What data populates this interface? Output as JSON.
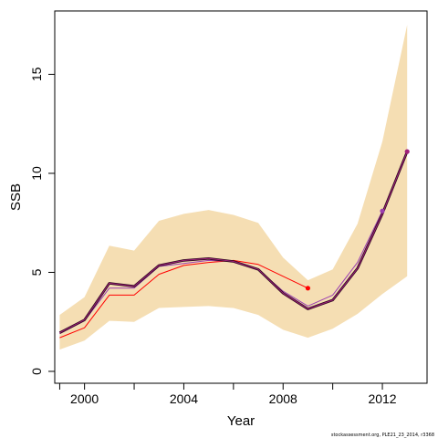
{
  "chart_data": {
    "type": "line",
    "xlabel": "Year",
    "ylabel": "SSB",
    "xlim": [
      1998.8,
      2013.8
    ],
    "ylim": [
      -0.6,
      18.2
    ],
    "x_ticks": [
      {
        "value": 1999,
        "label": ""
      },
      {
        "value": 2000,
        "label": "2000"
      },
      {
        "value": 2002,
        "label": ""
      },
      {
        "value": 2004,
        "label": "2004"
      },
      {
        "value": 2006,
        "label": ""
      },
      {
        "value": 2008,
        "label": "2008"
      },
      {
        "value": 2010,
        "label": ""
      },
      {
        "value": 2012,
        "label": "2012"
      }
    ],
    "y_ticks": [
      {
        "value": 0,
        "label": "0"
      },
      {
        "value": 5,
        "label": "5"
      },
      {
        "value": 10,
        "label": "10"
      },
      {
        "value": 15,
        "label": "15"
      }
    ],
    "grid": false,
    "band": {
      "color": "#f5deb3",
      "x": [
        1999,
        2000,
        2001,
        2002,
        2003,
        2004,
        2005,
        2006,
        2007,
        2008,
        2009,
        2010,
        2011,
        2012,
        2013
      ],
      "lower": [
        1.1,
        1.55,
        2.55,
        2.5,
        3.2,
        3.25,
        3.3,
        3.2,
        2.85,
        2.1,
        1.7,
        2.15,
        2.9,
        3.9,
        4.8
      ],
      "upper": [
        2.85,
        3.75,
        6.35,
        6.1,
        7.6,
        7.95,
        8.15,
        7.9,
        7.5,
        5.75,
        4.6,
        5.15,
        7.45,
        11.6,
        17.5
      ]
    },
    "series": [
      {
        "color": "#ff0000",
        "width": 1,
        "x": [
          1999,
          2000,
          2001,
          2002,
          2003,
          2004,
          2005,
          2006,
          2007,
          2008,
          2009
        ],
        "values": [
          1.7,
          2.2,
          3.85,
          3.85,
          4.9,
          5.35,
          5.5,
          5.6,
          5.4,
          4.8,
          4.2
        ],
        "end_point": true
      },
      {
        "color": "#9b3fb0",
        "width": 1,
        "x": [
          1999,
          2000,
          2001,
          2002,
          2003,
          2004,
          2005,
          2006,
          2007,
          2008,
          2009,
          2010,
          2011,
          2012
        ],
        "values": [
          1.9,
          2.55,
          4.2,
          4.2,
          5.3,
          5.45,
          5.6,
          5.55,
          5.15,
          4.05,
          3.3,
          3.85,
          5.5,
          8.1
        ],
        "end_point": true
      },
      {
        "color": "#2d0a1e",
        "width": 2.6,
        "x": [
          1999,
          2000,
          2001,
          2002,
          2003,
          2004,
          2005,
          2006,
          2007,
          2008,
          2009,
          2010,
          2011,
          2012,
          2013
        ],
        "values": [
          1.95,
          2.6,
          4.45,
          4.3,
          5.35,
          5.6,
          5.7,
          5.55,
          5.15,
          3.95,
          3.15,
          3.6,
          5.2,
          7.95,
          11.1
        ],
        "end_point": false
      },
      {
        "color": "#a0207a",
        "width": 1,
        "x": [
          1999,
          2000,
          2001,
          2002,
          2003,
          2004,
          2005,
          2006,
          2007,
          2008,
          2009,
          2010,
          2011,
          2012,
          2013
        ],
        "values": [
          1.95,
          2.6,
          4.45,
          4.3,
          5.35,
          5.6,
          5.7,
          5.55,
          5.15,
          3.95,
          3.15,
          3.6,
          5.2,
          7.95,
          11.1
        ],
        "end_point": true
      }
    ],
    "footnote": "stockassessment.org, PLE21_23_2014, r3368"
  }
}
